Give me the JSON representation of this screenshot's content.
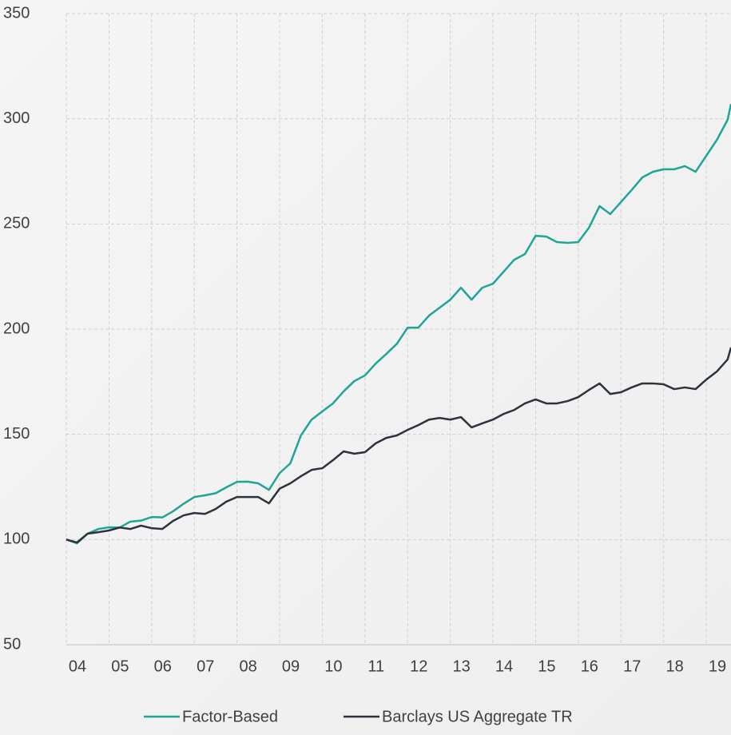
{
  "chart_data": {
    "type": "line",
    "x": [
      2004.0,
      2004.25,
      2004.5,
      2004.75,
      2005.0,
      2005.25,
      2005.5,
      2005.75,
      2006.0,
      2006.25,
      2006.5,
      2006.75,
      2007.0,
      2007.25,
      2007.5,
      2007.75,
      2008.0,
      2008.25,
      2008.5,
      2008.75,
      2009.0,
      2009.25,
      2009.5,
      2009.75,
      2010.0,
      2010.25,
      2010.5,
      2010.75,
      2011.0,
      2011.25,
      2011.5,
      2011.75,
      2012.0,
      2012.25,
      2012.5,
      2012.75,
      2013.0,
      2013.25,
      2013.5,
      2013.75,
      2014.0,
      2014.25,
      2014.5,
      2014.75,
      2015.0,
      2015.25,
      2015.5,
      2015.75,
      2016.0,
      2016.25,
      2016.5,
      2016.75,
      2017.0,
      2017.25,
      2017.5,
      2017.75,
      2018.0,
      2018.25,
      2018.5,
      2018.75,
      2019.0,
      2019.25,
      2019.5,
      2019.58
    ],
    "series": [
      {
        "name": "Factor-Based",
        "color": "#1fa596",
        "values": [
          100,
          98.2,
          102.8,
          105,
          105.8,
          105.7,
          108.5,
          109,
          110.7,
          110.5,
          113.4,
          117,
          120.2,
          121,
          122,
          124.8,
          127.4,
          127.5,
          126.7,
          123.6,
          131.6,
          136.2,
          149.5,
          157,
          160.9,
          164.7,
          170.4,
          175.3,
          178,
          183.6,
          188.2,
          193.1,
          200.7,
          200.7,
          206.4,
          210.2,
          214,
          219.7,
          214,
          219.7,
          221.6,
          227.3,
          233,
          235.7,
          244.4,
          244,
          241.4,
          241,
          241.4,
          248.2,
          258.5,
          254.7,
          260.4,
          266.1,
          272.1,
          274.8,
          276,
          276,
          277.5,
          274.8,
          282.4,
          290,
          299.5,
          307
        ]
      },
      {
        "name": "Barclays US Aggregate TR",
        "color": "#2b333d",
        "values": [
          100,
          98.6,
          102.8,
          103.5,
          104.3,
          105.7,
          105,
          106.6,
          105.4,
          105,
          108.8,
          111.5,
          112.6,
          112.2,
          114.5,
          118,
          120.2,
          120.2,
          120.2,
          117.2,
          124.2,
          126.7,
          130.1,
          133.1,
          133.9,
          137.7,
          141.9,
          140.8,
          141.5,
          145.7,
          148.3,
          149.5,
          152.1,
          154.4,
          157,
          157.8,
          157,
          158.2,
          153.3,
          155.2,
          157,
          159.7,
          161.6,
          164.7,
          166.6,
          164.7,
          164.7,
          165.8,
          167.7,
          171.1,
          174.2,
          169.2,
          170,
          172.3,
          174.2,
          174.2,
          173.8,
          171.5,
          172.3,
          171.5,
          176,
          179.9,
          185.6,
          191.3
        ]
      }
    ],
    "xlim": [
      2004,
      2019.58
    ],
    "xticks": [
      {
        "value": 2004,
        "label": "04"
      },
      {
        "value": 2005,
        "label": "05"
      },
      {
        "value": 2006,
        "label": "06"
      },
      {
        "value": 2007,
        "label": "07"
      },
      {
        "value": 2008,
        "label": "08"
      },
      {
        "value": 2009,
        "label": "09"
      },
      {
        "value": 2010,
        "label": "10"
      },
      {
        "value": 2011,
        "label": "11"
      },
      {
        "value": 2012,
        "label": "12"
      },
      {
        "value": 2013,
        "label": "13"
      },
      {
        "value": 2014,
        "label": "14"
      },
      {
        "value": 2015,
        "label": "15"
      },
      {
        "value": 2016,
        "label": "16"
      },
      {
        "value": 2017,
        "label": "17"
      },
      {
        "value": 2018,
        "label": "18"
      },
      {
        "value": 2019,
        "label": "19"
      }
    ],
    "ylim": [
      50,
      350
    ],
    "yticks": [
      50,
      100,
      150,
      200,
      250,
      300,
      350
    ],
    "grid": true,
    "legend": "bottom"
  }
}
